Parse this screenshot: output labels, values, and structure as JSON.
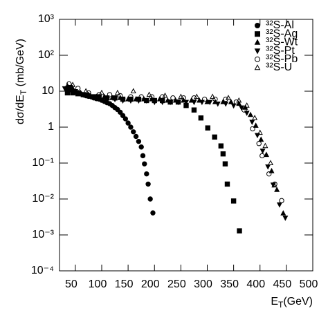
{
  "chart_data": {
    "type": "scatter",
    "xlabel": [
      "E",
      "T",
      "(GeV)"
    ],
    "ylabel": [
      "dσ/dE",
      "T",
      " (mb/GeV)"
    ],
    "xlim": [
      20,
      500
    ],
    "xticks": [
      50,
      100,
      150,
      200,
      250,
      300,
      350,
      400,
      450,
      500
    ],
    "ylim": [
      0.0001,
      1000
    ],
    "log_y": true,
    "yticks": [
      {
        "value": 1000,
        "label": "10³"
      },
      {
        "value": 100,
        "label": "10²"
      },
      10,
      1,
      {
        "value": 0.1,
        "label": "10⁻¹"
      },
      {
        "value": 0.01,
        "label": "10⁻²"
      },
      {
        "value": 0.001,
        "label": "10⁻³"
      },
      {
        "value": 0.0001,
        "label": "10⁻⁴"
      }
    ],
    "legend": "upper right",
    "series": [
      {
        "name": "³²S-Al",
        "color": "#000000",
        "marker": "circle",
        "filled": true,
        "x": [
          33,
          40,
          45,
          50,
          55,
          60,
          65,
          70,
          75,
          80,
          85,
          90,
          95,
          100,
          105,
          110,
          115,
          120,
          125,
          130,
          135,
          140,
          145,
          150,
          155,
          160,
          165,
          170,
          175,
          178,
          181,
          185,
          188,
          192,
          197
        ],
        "values": [
          12,
          11,
          10,
          9.5,
          9,
          8.5,
          8,
          7.5,
          7.2,
          7,
          6.5,
          6.2,
          6,
          5.6,
          5.2,
          4.8,
          4.5,
          4,
          3.5,
          3.1,
          2.6,
          2.1,
          1.7,
          1.3,
          1.0,
          0.74,
          0.55,
          0.4,
          0.28,
          0.16,
          0.095,
          0.05,
          0.026,
          0.01,
          0.0041
        ]
      },
      {
        "name": "³²S-Ag",
        "color": "#000000",
        "marker": "square",
        "filled": true,
        "x": [
          35,
          45,
          55,
          65,
          75,
          85,
          95,
          110,
          125,
          140,
          155,
          170,
          185,
          200,
          215,
          230,
          245,
          260,
          275,
          288,
          301,
          314,
          326,
          330,
          334,
          338,
          350,
          361
        ],
        "values": [
          9,
          9,
          8.5,
          8,
          7.5,
          7,
          7,
          6.5,
          6.5,
          6,
          6,
          6,
          5.5,
          5.5,
          5.5,
          5,
          5,
          4,
          3,
          1.8,
          0.95,
          0.53,
          0.3,
          0.18,
          0.095,
          0.026,
          0.0088,
          0.0013
        ]
      },
      {
        "name": "³²S-Wt",
        "color": "#000000",
        "marker": "triangle-up",
        "filled": true,
        "x": [
          35,
          45,
          60,
          75,
          90,
          105,
          120,
          135,
          150,
          165,
          180,
          195,
          210,
          225,
          240,
          255,
          270,
          285,
          300,
          315,
          330,
          345,
          360,
          372,
          382,
          392,
          402,
          412,
          422,
          432,
          444
        ],
        "values": [
          14,
          12,
          9,
          8,
          7,
          7,
          6.5,
          6.5,
          6,
          6,
          6,
          6,
          6,
          5.5,
          5.5,
          5.5,
          5.5,
          5.5,
          5,
          5,
          5,
          5,
          4.5,
          3.5,
          2.2,
          1.1,
          0.45,
          0.17,
          0.06,
          0.018,
          0.004
        ]
      },
      {
        "name": "³²S-Pt",
        "color": "#000000",
        "marker": "triangle-down",
        "filled": true,
        "x": [
          30,
          40,
          50,
          65,
          80,
          95,
          110,
          125,
          140,
          155,
          170,
          185,
          200,
          215,
          230,
          245,
          260,
          275,
          290,
          305,
          320,
          335,
          350,
          365,
          375,
          385,
          395,
          405,
          415,
          425,
          437,
          448
        ],
        "values": [
          12,
          13,
          10,
          8,
          7,
          6.5,
          6,
          6,
          5.5,
          5.5,
          5.5,
          5.5,
          5,
          5,
          5,
          5,
          5,
          5,
          5,
          5,
          4.5,
          4.5,
          4,
          3.5,
          2.5,
          1.4,
          0.6,
          0.22,
          0.08,
          0.025,
          0.007,
          0.003
        ]
      },
      {
        "name": "³²S-Pb",
        "color": "#000000",
        "marker": "circle",
        "filled": false,
        "x": [
          38,
          55,
          75,
          95,
          115,
          135,
          155,
          175,
          195,
          215,
          235,
          255,
          275,
          295,
          315,
          335,
          355,
          370,
          386,
          398,
          404,
          417,
          428,
          441
        ],
        "values": [
          16,
          12,
          9,
          8,
          8,
          7.5,
          7,
          7,
          7,
          7,
          6.5,
          6.5,
          6.5,
          6,
          6,
          6,
          5,
          3,
          0.9,
          0.35,
          0.16,
          0.05,
          0.026,
          0.009
        ]
      },
      {
        "name": "³²S-U",
        "color": "#000000",
        "marker": "triangle-up",
        "filled": false,
        "x": [
          45,
          70,
          100,
          130,
          160,
          190,
          220,
          250,
          280,
          310,
          340,
          360,
          375,
          390,
          400,
          410,
          420,
          427
        ],
        "values": [
          15,
          10,
          9,
          9,
          10,
          8,
          7.5,
          7,
          7,
          7,
          6.5,
          5.5,
          4,
          1.8,
          0.7,
          0.3,
          0.1,
          0.024
        ]
      }
    ]
  }
}
